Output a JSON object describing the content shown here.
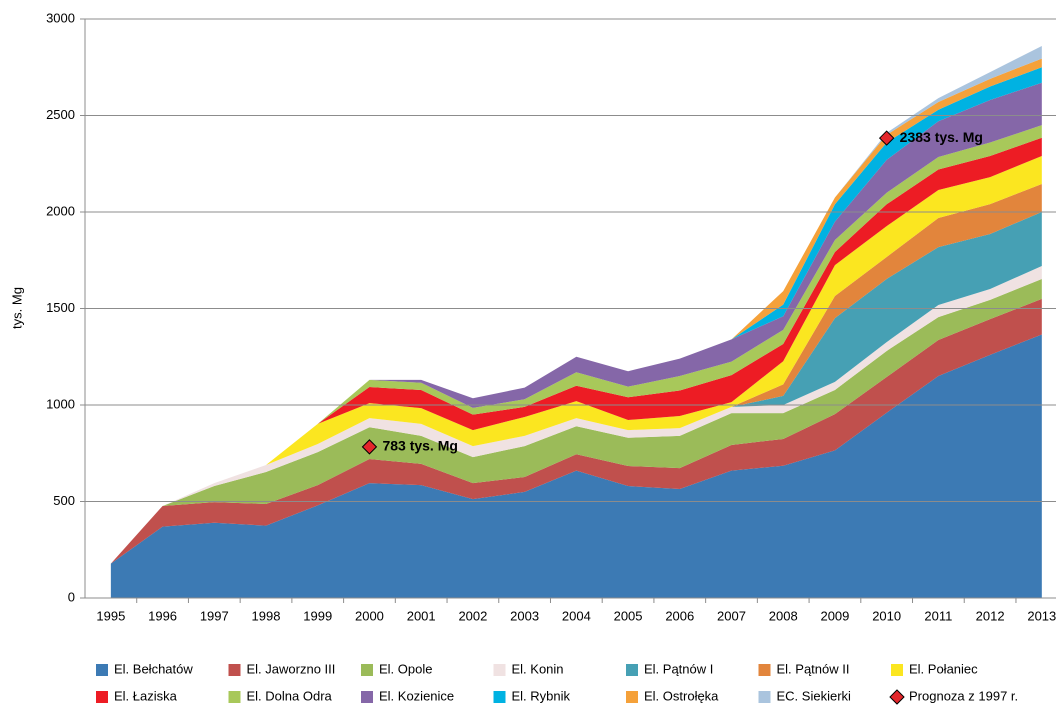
{
  "chart_data": {
    "type": "stacked_area",
    "y_label": "tys. Mg",
    "categories": [
      "1995",
      "1996",
      "1997",
      "1998",
      "1999",
      "2000",
      "2001",
      "2002",
      "2003",
      "2004",
      "2005",
      "2006",
      "2007",
      "2008",
      "2009",
      "2010",
      "2011",
      "2012",
      "2013"
    ],
    "ylim": [
      0,
      3000
    ],
    "yticks": [
      0,
      500,
      1000,
      1500,
      2000,
      2500,
      3000
    ],
    "grid": true,
    "series": [
      {
        "name": "El. Bełchatów",
        "color": "#3c7ab4",
        "values": [
          178,
          370,
          390,
          375,
          480,
          595,
          585,
          512,
          550,
          660,
          580,
          565,
          660,
          685,
          765,
          960,
          1150,
          1260,
          1365
        ]
      },
      {
        "name": "El. Jaworzno III",
        "color": "#c0504d",
        "values": [
          0,
          107,
          107,
          112,
          105,
          125,
          110,
          83,
          77,
          85,
          104,
          108,
          133,
          139,
          188,
          185,
          187,
          185,
          185
        ]
      },
      {
        "name": "El. Opole",
        "color": "#9bbb59",
        "values": [
          0,
          0,
          83,
          166,
          171,
          165,
          145,
          135,
          160,
          145,
          146,
          167,
          165,
          134,
          125,
          135,
          118,
          100,
          103
        ]
      },
      {
        "name": "El. Konin",
        "color": "#f0e2e2",
        "values": [
          0,
          0,
          15,
          36,
          42,
          47,
          62,
          57,
          53,
          42,
          40,
          40,
          32,
          42,
          42,
          46,
          63,
          56,
          67
        ]
      },
      {
        "name": "El. Pątnów I",
        "color": "#46a0b4",
        "values": [
          0,
          0,
          0,
          0,
          0,
          0,
          0,
          0,
          0,
          0,
          0,
          0,
          0,
          47,
          330,
          327,
          300,
          285,
          280
        ]
      },
      {
        "name": "El. Pątnów II",
        "color": "#e2853c",
        "values": [
          0,
          0,
          0,
          0,
          0,
          0,
          0,
          0,
          0,
          0,
          0,
          0,
          0,
          60,
          115,
          114,
          151,
          155,
          145
        ]
      },
      {
        "name": "El. Połaniec",
        "color": "#fbe620",
        "values": [
          0,
          0,
          0,
          0,
          104,
          78,
          82,
          83,
          98,
          88,
          52,
          63,
          25,
          120,
          160,
          160,
          145,
          140,
          145
        ]
      },
      {
        "name": "El. Łaziska",
        "color": "#ed1c24",
        "values": [
          0,
          0,
          0,
          0,
          0,
          83,
          94,
          80,
          52,
          80,
          118,
          132,
          140,
          89,
          68,
          113,
          106,
          109,
          95
        ]
      },
      {
        "name": "El. Dolna Odra",
        "color": "#a8c85a",
        "values": [
          0,
          0,
          0,
          0,
          0,
          37,
          37,
          35,
          40,
          70,
          55,
          75,
          70,
          73,
          62,
          60,
          65,
          70,
          65
        ]
      },
      {
        "name": "El. Kozienice",
        "color": "#8567a8",
        "values": [
          0,
          0,
          0,
          0,
          0,
          0,
          15,
          50,
          60,
          80,
          80,
          90,
          115,
          71,
          95,
          170,
          185,
          220,
          220
        ]
      },
      {
        "name": "El. Rybnik",
        "color": "#00b2e2",
        "values": [
          0,
          0,
          0,
          0,
          0,
          0,
          0,
          0,
          0,
          0,
          0,
          0,
          0,
          60,
          90,
          90,
          60,
          70,
          80
        ]
      },
      {
        "name": "El. Ostrołęka",
        "color": "#f5a13a",
        "values": [
          0,
          0,
          0,
          0,
          0,
          0,
          0,
          0,
          0,
          0,
          0,
          0,
          0,
          70,
          35,
          40,
          40,
          40,
          45
        ]
      },
      {
        "name": "EC. Siekierki",
        "color": "#aac4de",
        "values": [
          0,
          0,
          0,
          0,
          0,
          0,
          0,
          0,
          0,
          0,
          0,
          0,
          0,
          0,
          0,
          10,
          20,
          35,
          65
        ]
      }
    ],
    "forecast": {
      "name": "Prognoza z 1997 r.",
      "color": "#e3262b",
      "values": [
        null,
        null,
        null,
        null,
        null,
        783,
        null,
        null,
        null,
        null,
        null,
        null,
        null,
        null,
        null,
        2383,
        null,
        null,
        null
      ],
      "value_labels": [
        null,
        null,
        null,
        null,
        null,
        "783 tys. Mg",
        null,
        null,
        null,
        null,
        null,
        null,
        null,
        null,
        null,
        "2383 tys. Mg",
        null,
        null,
        null
      ]
    }
  }
}
